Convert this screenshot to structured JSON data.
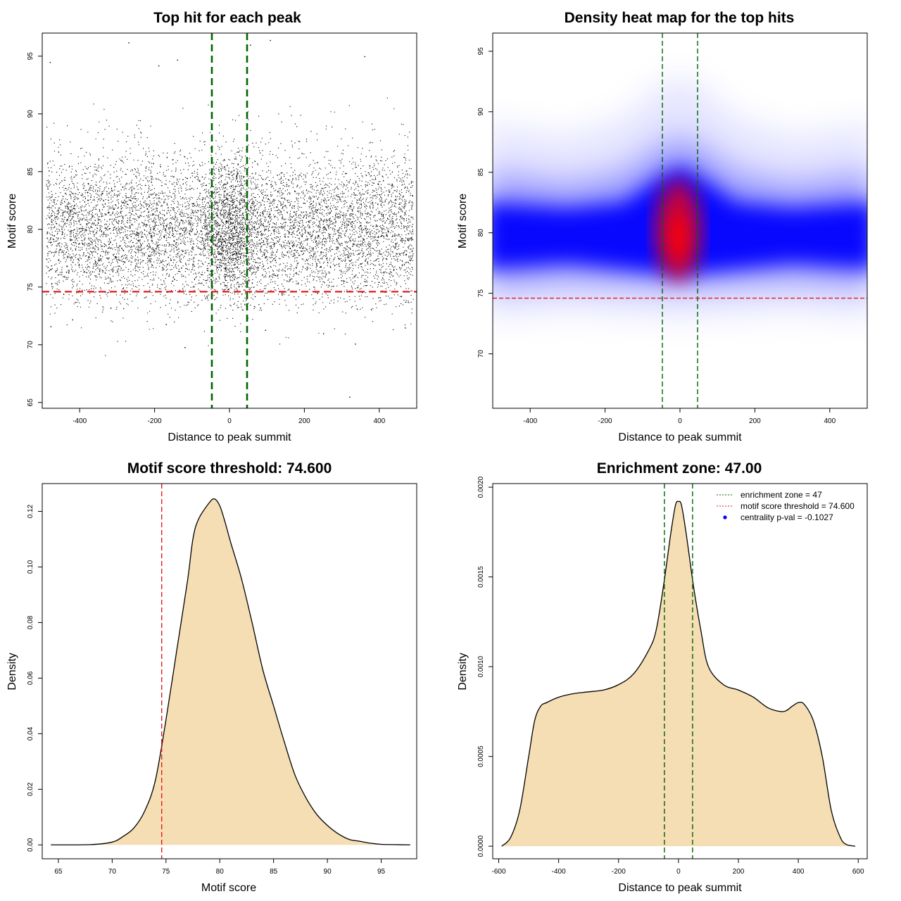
{
  "chart_data": [
    {
      "type": "scatter",
      "title": "Top hit for each peak",
      "xlabel": "Distance to peak summit",
      "ylabel": "Motif score",
      "xlim": [
        -500,
        500
      ],
      "ylim": [
        64.5,
        97
      ],
      "xticks": [
        -400,
        -200,
        0,
        200,
        400
      ],
      "yticks": [
        65,
        70,
        75,
        80,
        85,
        90,
        95
      ],
      "point_count_estimate": 9000,
      "distribution": {
        "x_range": [
          -490,
          490
        ],
        "y_mean": 80,
        "y_sd": 3.3,
        "center_boost_region": [
          -50,
          50
        ]
      },
      "outliers": [
        {
          "x": -270,
          "y": 96.2
        },
        {
          "x": 55,
          "y": 96.0
        },
        {
          "x": 108,
          "y": 96.4
        },
        {
          "x": -190,
          "y": 94.2
        },
        {
          "x": 360,
          "y": 95.0
        },
        {
          "x": -480,
          "y": 94.5
        },
        {
          "x": -140,
          "y": 94.7
        },
        {
          "x": 320,
          "y": 65.5
        },
        {
          "x": -120,
          "y": 69.8
        },
        {
          "x": 335,
          "y": 70.1
        },
        {
          "x": -478,
          "y": 71.6
        },
        {
          "x": 468,
          "y": 71.5
        },
        {
          "x": 250,
          "y": 71.0
        },
        {
          "x": 95,
          "y": 71.3
        },
        {
          "x": -170,
          "y": 71.8
        },
        {
          "x": -420,
          "y": 72.2
        }
      ],
      "hlines": [
        {
          "y": 74.6,
          "color": "#e41a1c"
        }
      ],
      "vlines": [
        {
          "x": -47,
          "color": "#006400"
        },
        {
          "x": 47,
          "color": "#006400"
        }
      ]
    },
    {
      "type": "heatmap",
      "title": "Density heat map for the top hits",
      "xlabel": "Distance to peak summit",
      "ylabel": "Motif score",
      "xlim": [
        -500,
        500
      ],
      "ylim": [
        65.5,
        96.5
      ],
      "xticks": [
        -400,
        -200,
        0,
        200,
        400
      ],
      "yticks": [
        70,
        75,
        80,
        85,
        90,
        95
      ],
      "colors": [
        "#ffffff",
        "#0000ff",
        "#ff0000"
      ],
      "hlines": [
        {
          "y": 74.6,
          "color": "#e41a1c"
        }
      ],
      "vlines": [
        {
          "x": -47,
          "color": "#006400"
        },
        {
          "x": 47,
          "color": "#006400"
        }
      ]
    },
    {
      "type": "area",
      "title": "Motif score threshold: 74.600",
      "xlabel": "Motif score",
      "ylabel": "Density",
      "xlim": [
        63.5,
        98.3
      ],
      "ylim": [
        -0.005,
        0.13
      ],
      "xticks": [
        65,
        70,
        75,
        80,
        85,
        90,
        95
      ],
      "yticks": [
        "0.00",
        "0.02",
        "0.04",
        "0.06",
        "0.08",
        "0.10",
        "0.12"
      ],
      "fill": "#f5deb3",
      "x": [
        64.3,
        68,
        70,
        71,
        72,
        73,
        74,
        75,
        76,
        77,
        77.5,
        78,
        79,
        79.5,
        80,
        80.5,
        81,
        82,
        83,
        84,
        85,
        86,
        87,
        88,
        89,
        90,
        91,
        92,
        93,
        94,
        95,
        96,
        97.7
      ],
      "y": [
        0.0,
        0.0001,
        0.001,
        0.003,
        0.006,
        0.012,
        0.023,
        0.045,
        0.07,
        0.095,
        0.11,
        0.117,
        0.123,
        0.1245,
        0.122,
        0.116,
        0.109,
        0.096,
        0.08,
        0.063,
        0.05,
        0.037,
        0.025,
        0.017,
        0.011,
        0.007,
        0.004,
        0.002,
        0.0013,
        0.0006,
        0.0002,
        0.0001,
        0.0
      ],
      "vlines": [
        {
          "x": 74.6,
          "color": "#e41a1c"
        }
      ]
    },
    {
      "type": "area",
      "title": "Enrichment zone: 47.00",
      "xlabel": "Distance to peak summit",
      "ylabel": "Density",
      "xlim": [
        -620,
        630
      ],
      "ylim": [
        -7e-05,
        0.00202
      ],
      "xticks": [
        -600,
        -400,
        -200,
        0,
        200,
        400,
        600
      ],
      "yticks": [
        "0.0000",
        "0.0005",
        "0.0010",
        "0.0015",
        "0.0020"
      ],
      "fill": "#f5deb3",
      "x": [
        -590,
        -560,
        -530,
        -500,
        -480,
        -460,
        -440,
        -400,
        -350,
        -300,
        -250,
        -200,
        -150,
        -100,
        -75,
        -50,
        -25,
        -10,
        0,
        10,
        25,
        50,
        75,
        100,
        150,
        200,
        250,
        300,
        350,
        380,
        400,
        420,
        450,
        480,
        510,
        540,
        560,
        590
      ],
      "y": [
        0.0,
        5e-05,
        0.0002,
        0.0005,
        0.0007,
        0.00078,
        0.0008,
        0.00083,
        0.00085,
        0.00086,
        0.00087,
        0.0009,
        0.00096,
        0.00109,
        0.0012,
        0.00145,
        0.00175,
        0.0019,
        0.00192,
        0.0019,
        0.00175,
        0.00145,
        0.0012,
        0.001,
        0.0009,
        0.00087,
        0.00083,
        0.00077,
        0.00075,
        0.00078,
        0.0008,
        0.00079,
        0.0007,
        0.0005,
        0.0002,
        5e-05,
        1e-05,
        0.0
      ],
      "vlines": [
        {
          "x": -47,
          "color": "#006400"
        },
        {
          "x": 47,
          "color": "#006400"
        }
      ],
      "legend": [
        {
          "label": "enrichment zone = 47",
          "kind": "line",
          "color": "#006400"
        },
        {
          "label": "motif score threshold = 74.600",
          "kind": "line",
          "color": "#e41a1c"
        },
        {
          "label": "centrality p-val = -0.1027",
          "kind": "point",
          "color": "#0000ff"
        }
      ],
      "legend_position": "top-right"
    }
  ]
}
